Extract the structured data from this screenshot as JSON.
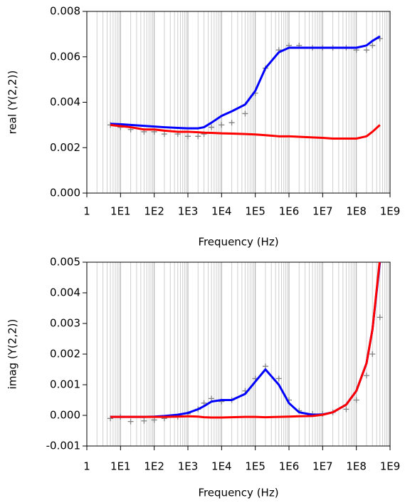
{
  "chart_data": [
    {
      "type": "line",
      "xscale": "log",
      "grid": true,
      "minor_grid": true,
      "xlabel": "Frequency (Hz)",
      "ylabel": "real (Y(2,2))",
      "xlim": [
        1,
        1000000000
      ],
      "xticks": [
        1,
        {
          "value": 10,
          "label": "1E1"
        },
        {
          "value": 100,
          "label": "1E2"
        },
        {
          "value": 1000,
          "label": "1E3"
        },
        {
          "value": 10000,
          "label": "1E4"
        },
        {
          "value": 100000,
          "label": "1E5"
        },
        {
          "value": 1000000,
          "label": "1E6"
        },
        {
          "value": 10000000,
          "label": "1E7"
        },
        {
          "value": 100000000,
          "label": "1E8"
        },
        {
          "value": 1000000000,
          "label": "1E9"
        }
      ],
      "ylim": [
        0,
        0.008
      ],
      "yticks": [
        {
          "value": 0,
          "label": "0.000"
        },
        0.002,
        0.004,
        0.006,
        0.008
      ],
      "x": [
        5,
        10,
        20,
        50,
        100,
        200,
        500,
        1000,
        2000,
        3000,
        5000,
        10000,
        20000,
        50000,
        100000,
        200000,
        500000,
        1000000,
        2000000,
        5000000,
        10000000,
        20000000,
        50000000,
        100000000,
        200000000,
        300000000,
        500000000
      ],
      "series": [
        {
          "color": "#808080",
          "marker": "+",
          "values": [
            0.003,
            0.0029,
            0.0028,
            0.0027,
            0.0027,
            0.0026,
            0.0026,
            0.0025,
            0.0025,
            0.0026,
            0.0029,
            0.003,
            0.0031,
            0.0035,
            0.0044,
            0.0055,
            0.0063,
            0.0065,
            0.0065,
            0.0064,
            0.0064,
            0.0064,
            0.0064,
            0.0063,
            0.0063,
            0.0065,
            0.0068
          ]
        },
        {
          "color": "#0000ff",
          "values": [
            0.00305,
            0.00303,
            0.003,
            0.00296,
            0.00293,
            0.0029,
            0.00287,
            0.00285,
            0.00285,
            0.0029,
            0.0031,
            0.0034,
            0.0036,
            0.0039,
            0.0045,
            0.0055,
            0.0062,
            0.0064,
            0.0064,
            0.0064,
            0.0064,
            0.0064,
            0.0064,
            0.0064,
            0.0065,
            0.0067,
            0.0069
          ]
        },
        {
          "color": "#ff0000",
          "values": [
            0.003,
            0.00295,
            0.0029,
            0.0028,
            0.0028,
            0.00275,
            0.0027,
            0.0027,
            0.00268,
            0.00266,
            0.00265,
            0.00263,
            0.00262,
            0.0026,
            0.00258,
            0.00255,
            0.0025,
            0.0025,
            0.00248,
            0.00245,
            0.00243,
            0.0024,
            0.0024,
            0.0024,
            0.0025,
            0.0027,
            0.003
          ]
        }
      ]
    },
    {
      "type": "line",
      "xscale": "log",
      "grid": true,
      "minor_grid": true,
      "xlabel": "Frequency (Hz)",
      "ylabel": "imag (Y(2,2))",
      "xlim": [
        1,
        1000000000
      ],
      "xticks": [
        1,
        {
          "value": 10,
          "label": "1E1"
        },
        {
          "value": 100,
          "label": "1E2"
        },
        {
          "value": 1000,
          "label": "1E3"
        },
        {
          "value": 10000,
          "label": "1E4"
        },
        {
          "value": 100000,
          "label": "1E5"
        },
        {
          "value": 1000000,
          "label": "1E6"
        },
        {
          "value": 10000000,
          "label": "1E7"
        },
        {
          "value": 100000000,
          "label": "1E8"
        },
        {
          "value": 1000000000,
          "label": "1E9"
        }
      ],
      "ylim": [
        -0.001,
        0.005
      ],
      "yticks": [
        -0.001,
        {
          "value": 0,
          "label": "0.000"
        },
        0.001,
        0.002,
        0.003,
        0.004,
        0.005
      ],
      "x": [
        5,
        10,
        20,
        50,
        100,
        200,
        500,
        1000,
        2000,
        3000,
        5000,
        10000,
        20000,
        50000,
        100000,
        200000,
        500000,
        1000000,
        2000000,
        5000000,
        10000000,
        20000000,
        50000000,
        100000000,
        200000000,
        300000000,
        500000000
      ],
      "series": [
        {
          "color": "#808080",
          "marker": "+",
          "values": [
            -0.0001,
            -5e-05,
            -0.0002,
            -0.00018,
            -0.00015,
            -0.0001,
            -5e-05,
            5e-05,
            0.0002,
            0.0004,
            0.00055,
            0.00045,
            0.0005,
            0.0008,
            0.0012,
            0.0016,
            0.0012,
            0.0005,
            0.00015,
            5e-05,
            5e-05,
            0.0001,
            0.0002,
            0.0005,
            0.0013,
            0.002,
            0.0032
          ]
        },
        {
          "color": "#0000ff",
          "values": [
            -5e-05,
            -5e-05,
            -5e-05,
            -5e-05,
            -4e-05,
            -2e-05,
            2e-05,
            8e-05,
            0.0002,
            0.0003,
            0.00045,
            0.0005,
            0.0005,
            0.0007,
            0.0011,
            0.0015,
            0.001,
            0.0004,
            0.0001,
            2e-05,
            3e-05,
            0.0001,
            0.00035,
            0.0008,
            0.0017,
            0.0028,
            0.005
          ]
        },
        {
          "color": "#ff0000",
          "values": [
            -5e-05,
            -5e-05,
            -5e-05,
            -5e-05,
            -5e-05,
            -5e-05,
            -4e-05,
            -3e-05,
            -4e-05,
            -6e-05,
            -7e-05,
            -7e-05,
            -6e-05,
            -5e-05,
            -5e-05,
            -6e-05,
            -5e-05,
            -4e-05,
            -3e-05,
            -2e-05,
            2e-05,
            0.0001,
            0.00035,
            0.0008,
            0.0017,
            0.0028,
            0.0051
          ]
        }
      ]
    }
  ]
}
